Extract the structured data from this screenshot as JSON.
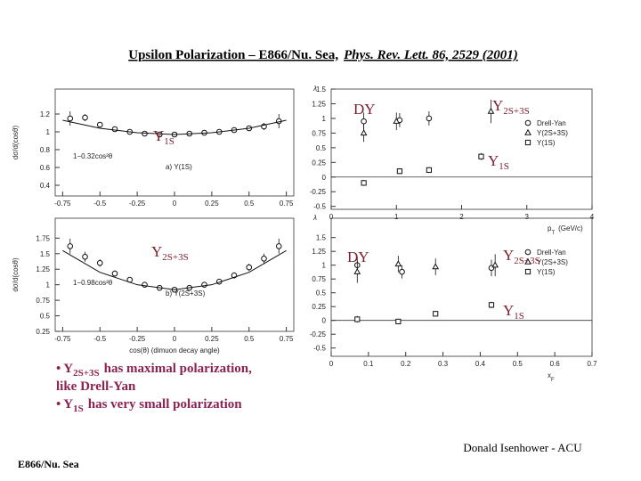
{
  "header": {
    "title": "Upsilon Polarization – E866/Nu. Sea,",
    "citation": "Phys. Rev. Lett. 86, 2529 (2001)"
  },
  "chart_data": [
    {
      "type": "scatter",
      "ylabel": "dσ/d(cosθ)",
      "xlim": [
        -0.8,
        0.8
      ],
      "ylim": [
        0.28,
        1.48
      ],
      "xticks": [
        -0.75,
        -0.5,
        -0.25,
        0,
        0.25,
        0.5,
        0.75
      ],
      "yticks": [
        0.4,
        0.6,
        0.8,
        1,
        1.2
      ],
      "annotations": [
        "1−0.32cos²θ",
        "a) Υ(1S)"
      ],
      "series": [
        {
          "marker": "circle",
          "x": [
            -0.7,
            -0.6,
            -0.5,
            -0.4,
            -0.3,
            -0.2,
            -0.1,
            0,
            0.1,
            0.2,
            0.3,
            0.4,
            0.5,
            0.6,
            0.7
          ],
          "values": [
            1.15,
            1.16,
            1.08,
            1.03,
            1.0,
            0.98,
            0.97,
            0.97,
            0.98,
            0.99,
            1.0,
            1.02,
            1.04,
            1.06,
            1.12
          ],
          "errors": [
            0.08,
            0.04,
            0.03,
            0.02,
            0.02,
            0.02,
            0.02,
            0.02,
            0.02,
            0.02,
            0.02,
            0.02,
            0.03,
            0.04,
            0.08
          ]
        },
        {
          "line": true,
          "x": [
            -0.75,
            -0.5,
            -0.25,
            0,
            0.25,
            0.5,
            0.75
          ],
          "values": [
            1.13,
            1.04,
            0.99,
            0.97,
            0.99,
            1.04,
            1.13
          ]
        }
      ]
    },
    {
      "type": "scatter",
      "ylabel": "λ",
      "xlabel": [
        "p",
        "T",
        "(GeV/c)"
      ],
      "xlim": [
        0,
        4
      ],
      "ylim": [
        -0.55,
        1.5
      ],
      "xticks": [
        0,
        1,
        2,
        3,
        4
      ],
      "yticks": [
        1.5,
        1.25,
        1,
        0.75,
        0.5,
        0.25,
        0,
        -0.25,
        -0.5
      ],
      "zero_line": true,
      "series": [
        {
          "name": "Drell-Yan",
          "marker": "circle",
          "x": [
            0.5,
            1.05,
            1.5
          ],
          "values": [
            0.95,
            0.97,
            1.0
          ],
          "errors": [
            0.15,
            0.12,
            0.12
          ]
        },
        {
          "name": "Υ(2S+3S)",
          "marker": "triangle",
          "x": [
            0.5,
            1.0,
            2.45
          ],
          "values": [
            0.75,
            0.95,
            1.12
          ],
          "errors": [
            0.15,
            0.15,
            0.2
          ]
        },
        {
          "name": "Υ(1S)",
          "marker": "square",
          "x": [
            0.5,
            1.05,
            1.5,
            2.3
          ],
          "values": [
            -0.1,
            0.1,
            0.12,
            0.35
          ],
          "errors": [
            0.05,
            0.05,
            0.05,
            0.06
          ]
        }
      ]
    },
    {
      "type": "scatter",
      "ylabel": "dσ/d(cosθ)",
      "xlabel": [
        "cos(θ) (dimuon decay angle)"
      ],
      "xlim": [
        -0.8,
        0.8
      ],
      "ylim": [
        0.25,
        2.07
      ],
      "xticks": [
        -0.75,
        -0.5,
        -0.25,
        0,
        0.25,
        0.5,
        0.75
      ],
      "yticks": [
        0.25,
        0.5,
        0.75,
        1,
        1.25,
        1.5,
        1.75
      ],
      "annotations": [
        "1−0.98cos²θ",
        "b) Υ(2S+3S)"
      ],
      "series": [
        {
          "marker": "circle",
          "x": [
            -0.7,
            -0.6,
            -0.5,
            -0.4,
            -0.3,
            -0.2,
            -0.1,
            0,
            0.1,
            0.2,
            0.3,
            0.4,
            0.5,
            0.6,
            0.7
          ],
          "values": [
            1.62,
            1.45,
            1.35,
            1.18,
            1.08,
            1.0,
            0.95,
            0.92,
            0.95,
            1.0,
            1.05,
            1.15,
            1.28,
            1.42,
            1.62
          ],
          "errors": [
            0.12,
            0.08,
            0.06,
            0.05,
            0.04,
            0.04,
            0.04,
            0.04,
            0.04,
            0.04,
            0.04,
            0.05,
            0.06,
            0.08,
            0.12
          ]
        },
        {
          "line": true,
          "x": [
            -0.75,
            -0.5,
            -0.25,
            0,
            0.25,
            0.5,
            0.75
          ],
          "values": [
            1.55,
            1.2,
            1.0,
            0.92,
            1.0,
            1.2,
            1.55
          ]
        }
      ]
    },
    {
      "type": "scatter",
      "ylabel": "λ",
      "xlabel": [
        "x",
        "F"
      ],
      "xlim": [
        0,
        0.7
      ],
      "ylim": [
        -0.65,
        1.85
      ],
      "xticks": [
        0,
        0.1,
        0.2,
        0.3,
        0.4,
        0.5,
        0.6,
        0.7
      ],
      "yticks": [
        1.5,
        1.25,
        1,
        0.75,
        0.5,
        0.25,
        0,
        -0.25,
        -0.5
      ],
      "zero_line": true,
      "series": [
        {
          "name": "Drell-Yan",
          "marker": "circle",
          "x": [
            0.07,
            0.19,
            0.43
          ],
          "values": [
            1.0,
            0.88,
            0.95
          ],
          "errors": [
            0.15,
            0.12,
            0.15
          ]
        },
        {
          "name": "Υ(2S+3S)",
          "marker": "triangle",
          "x": [
            0.07,
            0.18,
            0.28,
            0.44
          ],
          "values": [
            0.88,
            1.02,
            0.97,
            1.0
          ],
          "errors": [
            0.2,
            0.15,
            0.15,
            0.2
          ]
        },
        {
          "name": "Υ(1S)",
          "marker": "square",
          "x": [
            0.07,
            0.18,
            0.28,
            0.43
          ],
          "values": [
            0.02,
            -0.02,
            0.12,
            0.28
          ],
          "errors": [
            0.06,
            0.05,
            0.05,
            0.06
          ]
        }
      ]
    }
  ],
  "overlays": [
    {
      "text": "DY"
    },
    {
      "symbol": "Υ",
      "sub": "2S+3S"
    },
    {
      "symbol": "Υ",
      "sub": "1S"
    },
    {
      "symbol": "Υ",
      "sub": "1S"
    },
    {
      "text": "DY"
    },
    {
      "symbol": "Υ",
      "sub": "2S+3S"
    },
    {
      "symbol": "Υ",
      "sub": "2S+3S"
    },
    {
      "symbol": "Υ",
      "sub": "1S"
    }
  ],
  "bullets": [
    {
      "lead": "•",
      "symbol": "Υ",
      "sub": "2S+3S",
      "text": "has maximal polarization,"
    },
    {
      "text": "like Drell-Yan"
    },
    {
      "lead": "•",
      "symbol": "Υ",
      "sub": "1S",
      "text": "has very small polarization"
    }
  ],
  "footer": {
    "author": "Donald Isenhower - ACU",
    "group": "E866/Nu. Sea"
  }
}
